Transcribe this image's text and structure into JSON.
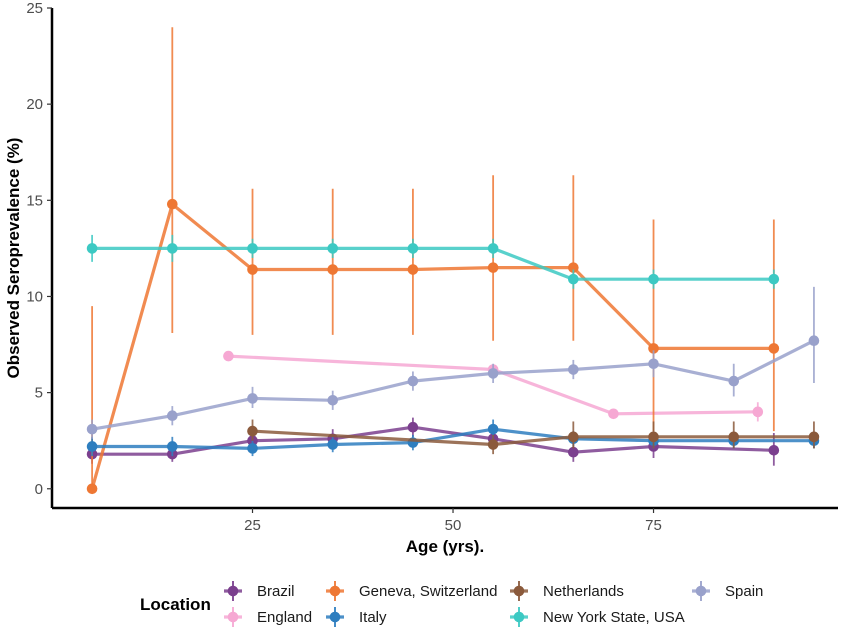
{
  "chart_data": {
    "type": "line",
    "xlabel": "Age (yrs).",
    "ylabel": "Observed Seroprevalence (%)",
    "xlim": [
      0,
      98
    ],
    "ylim": [
      -1,
      25
    ],
    "xticks": [
      25,
      50,
      75
    ],
    "yticks": [
      0,
      5,
      10,
      15,
      20,
      25
    ],
    "grid": false,
    "legend": {
      "title": "Location",
      "position": "bottom"
    },
    "series": [
      {
        "name": "Brazil",
        "color": "#7b3f8e",
        "points": [
          [
            5,
            1.8,
            1.3,
            2.4
          ],
          [
            15,
            1.8,
            1.4,
            2.3
          ],
          [
            25,
            2.5,
            2.0,
            3.0
          ],
          [
            35,
            2.6,
            2.1,
            3.1
          ],
          [
            45,
            3.2,
            2.7,
            3.7
          ],
          [
            55,
            2.6,
            2.1,
            3.1
          ],
          [
            65,
            1.9,
            1.4,
            2.4
          ],
          [
            75,
            2.2,
            1.6,
            2.8
          ],
          [
            90,
            2.0,
            1.2,
            2.9
          ]
        ]
      },
      {
        "name": "England",
        "color": "#f6a8d3",
        "points": [
          [
            22,
            6.9,
            6.9,
            6.9
          ],
          [
            55,
            6.2,
            6.2,
            6.2
          ],
          [
            70,
            3.9,
            3.9,
            3.9
          ],
          [
            88,
            4.0,
            3.5,
            4.5
          ]
        ]
      },
      {
        "name": "Geneva, Switzerland",
        "color": "#ee7733",
        "points": [
          [
            5,
            0.0,
            0.0,
            9.5
          ],
          [
            15,
            14.8,
            8.1,
            24.0
          ],
          [
            25,
            11.4,
            8.0,
            15.6
          ],
          [
            35,
            11.4,
            8.0,
            15.6
          ],
          [
            45,
            11.4,
            8.0,
            15.6
          ],
          [
            55,
            11.5,
            7.7,
            16.3
          ],
          [
            65,
            11.5,
            7.7,
            16.3
          ],
          [
            75,
            7.3,
            3.0,
            14.0
          ],
          [
            90,
            7.3,
            3.0,
            14.0
          ]
        ]
      },
      {
        "name": "Italy",
        "color": "#2e7ebf",
        "points": [
          [
            5,
            2.2,
            1.7,
            2.7
          ],
          [
            15,
            2.2,
            1.7,
            2.7
          ],
          [
            25,
            2.1,
            1.7,
            2.5
          ],
          [
            35,
            2.3,
            1.9,
            2.7
          ],
          [
            45,
            2.4,
            2.0,
            2.8
          ],
          [
            55,
            3.1,
            2.6,
            3.6
          ],
          [
            65,
            2.6,
            2.2,
            3.0
          ],
          [
            75,
            2.5,
            2.1,
            2.9
          ],
          [
            85,
            2.5,
            2.1,
            2.9
          ],
          [
            95,
            2.5,
            2.1,
            2.9
          ]
        ]
      },
      {
        "name": "Netherlands",
        "color": "#8b5a3c",
        "points": [
          [
            25,
            3.0,
            2.5,
            3.6
          ],
          [
            55,
            2.3,
            1.8,
            2.8
          ],
          [
            65,
            2.7,
            2.1,
            3.5
          ],
          [
            75,
            2.7,
            2.1,
            3.5
          ],
          [
            85,
            2.7,
            2.1,
            3.5
          ],
          [
            95,
            2.7,
            2.1,
            3.5
          ]
        ]
      },
      {
        "name": "New York State, USA",
        "color": "#3cc9c3",
        "points": [
          [
            5,
            12.5,
            11.8,
            13.2
          ],
          [
            15,
            12.5,
            11.8,
            13.2
          ],
          [
            25,
            12.5,
            12.0,
            13.0
          ],
          [
            35,
            12.5,
            12.0,
            13.0
          ],
          [
            45,
            12.5,
            12.0,
            13.0
          ],
          [
            55,
            12.5,
            12.0,
            13.0
          ],
          [
            65,
            10.9,
            10.4,
            11.4
          ],
          [
            75,
            10.9,
            10.4,
            11.4
          ],
          [
            90,
            10.9,
            10.4,
            11.4
          ]
        ]
      },
      {
        "name": "Spain",
        "color": "#99a1cb",
        "points": [
          [
            5,
            3.1,
            2.6,
            3.6
          ],
          [
            15,
            3.8,
            3.3,
            4.3
          ],
          [
            25,
            4.7,
            4.2,
            5.3
          ],
          [
            35,
            4.6,
            4.1,
            5.1
          ],
          [
            45,
            5.6,
            5.1,
            6.1
          ],
          [
            55,
            6.0,
            5.5,
            6.5
          ],
          [
            65,
            6.2,
            5.7,
            6.7
          ],
          [
            75,
            6.5,
            5.8,
            7.2
          ],
          [
            85,
            5.6,
            4.8,
            6.5
          ],
          [
            95,
            7.7,
            5.5,
            10.5
          ]
        ]
      }
    ]
  }
}
